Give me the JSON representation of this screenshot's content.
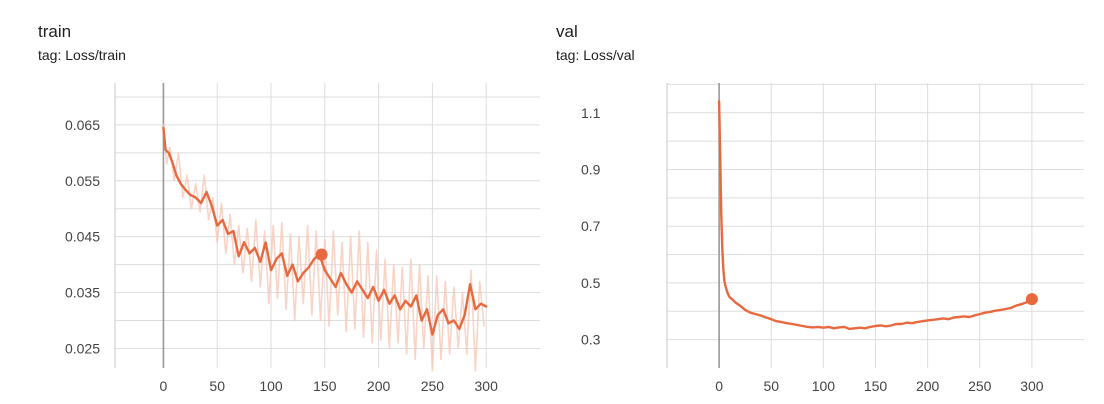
{
  "charts": [
    {
      "title": "train",
      "tag": "tag: Loss/train",
      "accent": "#e8693f",
      "raw_color": "#f7c5b3"
    },
    {
      "title": "val",
      "tag": "tag: Loss/val",
      "accent": "#e8693f"
    }
  ],
  "chart_data": [
    {
      "type": "line",
      "title": "train",
      "subtitle": "tag: Loss/train",
      "xlim": [
        -45,
        350
      ],
      "ylim": [
        0.0215,
        0.0725
      ],
      "xticks": [
        0,
        50,
        100,
        150,
        200,
        250,
        300
      ],
      "xtick_labels": [
        "0",
        "50",
        "100",
        "150",
        "200",
        "250",
        "300"
      ],
      "yticks": [
        0.025,
        0.035,
        0.045,
        0.055,
        0.065
      ],
      "ytick_labels": [
        "0.025",
        "0.035",
        "0.045",
        "0.055",
        "0.065"
      ],
      "grid": true,
      "series": [
        {
          "kind": "smoothed",
          "x": [
            0,
            2,
            5,
            8,
            12,
            16,
            20,
            25,
            30,
            35,
            40,
            45,
            50,
            55,
            60,
            65,
            70,
            75,
            80,
            85,
            90,
            95,
            100,
            105,
            110,
            115,
            120,
            125,
            130,
            135,
            140,
            145,
            150,
            155,
            160,
            165,
            170,
            175,
            180,
            185,
            190,
            195,
            200,
            205,
            210,
            215,
            220,
            225,
            230,
            235,
            240,
            245,
            250,
            255,
            260,
            265,
            270,
            275,
            280,
            285,
            290,
            295,
            300
          ],
          "values": [
            0.0645,
            0.0605,
            0.06,
            0.0585,
            0.056,
            0.0545,
            0.0535,
            0.0525,
            0.052,
            0.051,
            0.053,
            0.0505,
            0.047,
            0.048,
            0.0455,
            0.046,
            0.0415,
            0.044,
            0.042,
            0.043,
            0.0405,
            0.044,
            0.039,
            0.041,
            0.042,
            0.038,
            0.04,
            0.037,
            0.0385,
            0.0395,
            0.041,
            0.0418,
            0.039,
            0.0375,
            0.036,
            0.0385,
            0.0365,
            0.035,
            0.037,
            0.0355,
            0.034,
            0.036,
            0.0335,
            0.0355,
            0.033,
            0.0345,
            0.032,
            0.0335,
            0.0325,
            0.0345,
            0.03,
            0.032,
            0.0275,
            0.031,
            0.032,
            0.0295,
            0.03,
            0.0285,
            0.031,
            0.0365,
            0.032,
            0.033,
            0.0325
          ]
        },
        {
          "kind": "raw",
          "x": [
            0,
            3,
            6,
            10,
            14,
            18,
            22,
            26,
            30,
            34,
            38,
            42,
            46,
            50,
            54,
            58,
            62,
            66,
            70,
            74,
            78,
            82,
            86,
            90,
            94,
            98,
            102,
            106,
            110,
            114,
            118,
            122,
            126,
            130,
            134,
            138,
            142,
            146,
            150,
            154,
            158,
            162,
            166,
            170,
            174,
            178,
            182,
            186,
            190,
            194,
            198,
            202,
            206,
            210,
            214,
            218,
            222,
            226,
            230,
            234,
            238,
            242,
            246,
            250,
            254,
            258,
            262,
            266,
            270,
            274,
            278,
            282,
            286,
            290,
            294,
            298
          ],
          "values": [
            0.065,
            0.058,
            0.061,
            0.055,
            0.06,
            0.052,
            0.056,
            0.05,
            0.0545,
            0.0495,
            0.056,
            0.048,
            0.052,
            0.044,
            0.051,
            0.042,
            0.049,
            0.04,
            0.047,
            0.0385,
            0.0465,
            0.037,
            0.048,
            0.036,
            0.046,
            0.033,
            0.047,
            0.034,
            0.0475,
            0.032,
            0.0455,
            0.03,
            0.045,
            0.033,
            0.047,
            0.031,
            0.046,
            0.03,
            0.0445,
            0.029,
            0.046,
            0.031,
            0.044,
            0.028,
            0.045,
            0.0285,
            0.046,
            0.027,
            0.044,
            0.026,
            0.0425,
            0.0265,
            0.041,
            0.025,
            0.04,
            0.026,
            0.0395,
            0.024,
            0.041,
            0.023,
            0.04,
            0.025,
            0.038,
            0.021,
            0.038,
            0.023,
            0.037,
            0.024,
            0.036,
            0.025,
            0.035,
            0.024,
            0.039,
            0.021,
            0.037,
            0.029
          ]
        }
      ],
      "marker": {
        "x": 147,
        "y": 0.0418
      }
    },
    {
      "type": "line",
      "title": "val",
      "subtitle": "tag: Loss/val",
      "xlim": [
        -50,
        350
      ],
      "ylim": [
        0.2,
        1.205
      ],
      "xticks": [
        0,
        50,
        100,
        150,
        200,
        250,
        300
      ],
      "xtick_labels": [
        "0",
        "50",
        "100",
        "150",
        "200",
        "250",
        "300"
      ],
      "yticks": [
        0.3,
        0.5,
        0.7,
        0.9,
        1.1
      ],
      "ytick_labels": [
        "0.3",
        "0.5",
        "0.7",
        "0.9",
        "1.1"
      ],
      "grid": true,
      "series": [
        {
          "kind": "smoothed",
          "x": [
            0,
            1,
            2,
            3,
            4,
            5,
            6,
            8,
            10,
            13,
            16,
            20,
            25,
            30,
            35,
            40,
            45,
            50,
            55,
            60,
            65,
            70,
            75,
            80,
            85,
            90,
            95,
            100,
            105,
            110,
            115,
            120,
            125,
            130,
            135,
            140,
            145,
            150,
            155,
            160,
            165,
            170,
            175,
            180,
            185,
            190,
            195,
            200,
            205,
            210,
            215,
            220,
            225,
            230,
            235,
            240,
            245,
            250,
            255,
            260,
            265,
            270,
            275,
            280,
            285,
            290,
            295,
            300
          ],
          "values": [
            1.14,
            0.95,
            0.75,
            0.62,
            0.55,
            0.51,
            0.49,
            0.465,
            0.45,
            0.44,
            0.43,
            0.42,
            0.405,
            0.395,
            0.39,
            0.385,
            0.378,
            0.372,
            0.365,
            0.362,
            0.358,
            0.355,
            0.352,
            0.348,
            0.345,
            0.343,
            0.345,
            0.342,
            0.345,
            0.34,
            0.343,
            0.345,
            0.338,
            0.34,
            0.342,
            0.34,
            0.345,
            0.348,
            0.35,
            0.347,
            0.35,
            0.355,
            0.355,
            0.36,
            0.358,
            0.362,
            0.365,
            0.368,
            0.37,
            0.372,
            0.375,
            0.372,
            0.378,
            0.38,
            0.382,
            0.38,
            0.385,
            0.39,
            0.395,
            0.398,
            0.402,
            0.405,
            0.408,
            0.412,
            0.42,
            0.425,
            0.432,
            0.44
          ]
        }
      ],
      "marker": {
        "x": 300,
        "y": 0.443
      }
    }
  ]
}
